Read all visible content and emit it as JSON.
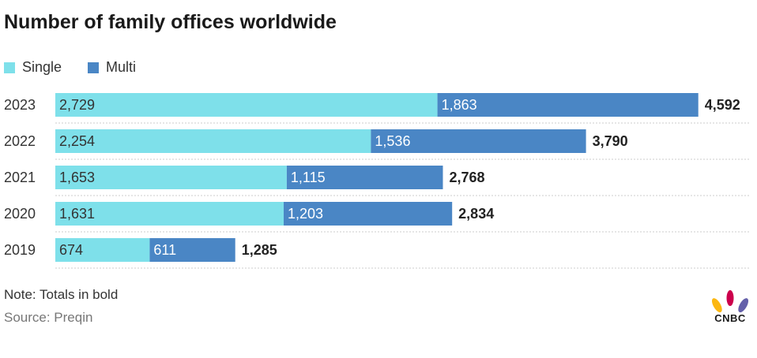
{
  "title": "Number of family offices worldwide",
  "legend": [
    {
      "label": "Single",
      "color": "#7ee0ea"
    },
    {
      "label": "Multi",
      "color": "#4a86c5"
    }
  ],
  "chart_data": {
    "type": "bar",
    "orientation": "horizontal",
    "stacked": true,
    "categories": [
      "2023",
      "2022",
      "2021",
      "2020",
      "2019"
    ],
    "series": [
      {
        "name": "Single",
        "color": "#7ee0ea",
        "values": [
          2729,
          2254,
          1653,
          1631,
          674
        ],
        "labels": [
          "2,729",
          "2,254",
          "1,653",
          "1,631",
          "674"
        ]
      },
      {
        "name": "Multi",
        "color": "#4a86c5",
        "values": [
          1863,
          1536,
          1115,
          1203,
          611
        ],
        "labels": [
          "1,863",
          "1,536",
          "1,115",
          "1,203",
          "611"
        ]
      }
    ],
    "totals": [
      4592,
      3790,
      2768,
      2834,
      1285
    ],
    "total_labels": [
      "4,592",
      "3,790",
      "2,768",
      "2,834",
      "1,285"
    ],
    "grid": "dotted row separators",
    "legend_position": "top-left"
  },
  "note": "Note: Totals in bold",
  "source": "Source: Preqin",
  "logo": {
    "text": "CNBC",
    "icon": "peacock-icon"
  }
}
